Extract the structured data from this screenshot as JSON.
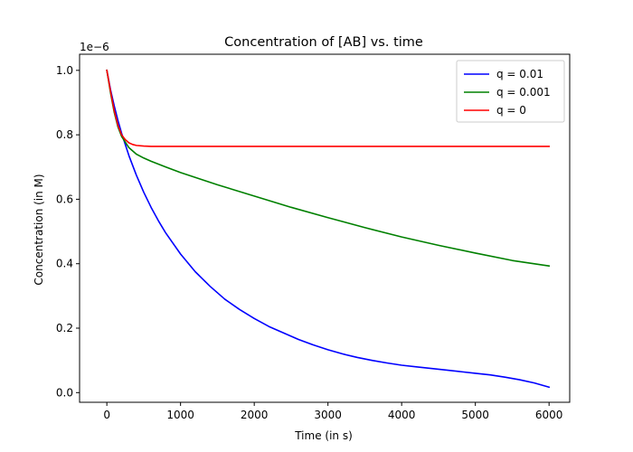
{
  "chart_data": {
    "type": "line",
    "title": "Concentration of [AB] vs. time",
    "xlabel": "Time (in s)",
    "ylabel": "Concentration (in M)",
    "offset_text": "1e−6",
    "xlim": [
      -370,
      6280
    ],
    "ylim": [
      -0.03,
      1.05
    ],
    "x_ticks": [
      0,
      1000,
      2000,
      3000,
      4000,
      5000,
      6000
    ],
    "y_ticks": [
      0.0,
      0.2,
      0.4,
      0.6,
      0.8,
      1.0
    ],
    "y_tick_labels": [
      "0.0",
      "0.2",
      "0.4",
      "0.6",
      "0.8",
      "1.0"
    ],
    "grid": false,
    "legend_position": "top-right",
    "series": [
      {
        "name": "q = 0.01",
        "color": "#0000ff",
        "x": [
          0,
          50,
          100,
          150,
          200,
          300,
          400,
          500,
          600,
          700,
          800,
          1000,
          1200,
          1400,
          1600,
          1800,
          2000,
          2200,
          2400,
          2600,
          2800,
          3000,
          3200,
          3400,
          3600,
          3800,
          4000,
          4200,
          4400,
          4600,
          4800,
          5000,
          5200,
          5400,
          5600,
          5800,
          6000
        ],
        "values": [
          1.0,
          0.94,
          0.89,
          0.845,
          0.805,
          0.735,
          0.675,
          0.622,
          0.575,
          0.533,
          0.495,
          0.43,
          0.375,
          0.33,
          0.29,
          0.258,
          0.23,
          0.205,
          0.185,
          0.165,
          0.148,
          0.133,
          0.12,
          0.109,
          0.1,
          0.092,
          0.085,
          0.08,
          0.075,
          0.07,
          0.065,
          0.06,
          0.055,
          0.048,
          0.04,
          0.03,
          0.017
        ]
      },
      {
        "name": "q = 0.001",
        "color": "#008000",
        "x": [
          0,
          50,
          100,
          150,
          200,
          300,
          400,
          500,
          600,
          800,
          1000,
          1500,
          2000,
          2500,
          3000,
          3500,
          4000,
          4500,
          5000,
          5500,
          6000
        ],
        "values": [
          1.0,
          0.93,
          0.87,
          0.825,
          0.795,
          0.76,
          0.74,
          0.728,
          0.718,
          0.7,
          0.683,
          0.645,
          0.61,
          0.575,
          0.543,
          0.512,
          0.483,
          0.457,
          0.433,
          0.41,
          0.393
        ]
      },
      {
        "name": "q = 0",
        "color": "#ff0000",
        "x": [
          0,
          50,
          100,
          150,
          200,
          250,
          300,
          350,
          400,
          500,
          600,
          800,
          1000,
          2000,
          3000,
          4000,
          5000,
          6000
        ],
        "values": [
          1.0,
          0.935,
          0.875,
          0.83,
          0.8,
          0.785,
          0.775,
          0.77,
          0.767,
          0.765,
          0.764,
          0.764,
          0.764,
          0.764,
          0.764,
          0.764,
          0.764,
          0.764
        ]
      }
    ]
  }
}
